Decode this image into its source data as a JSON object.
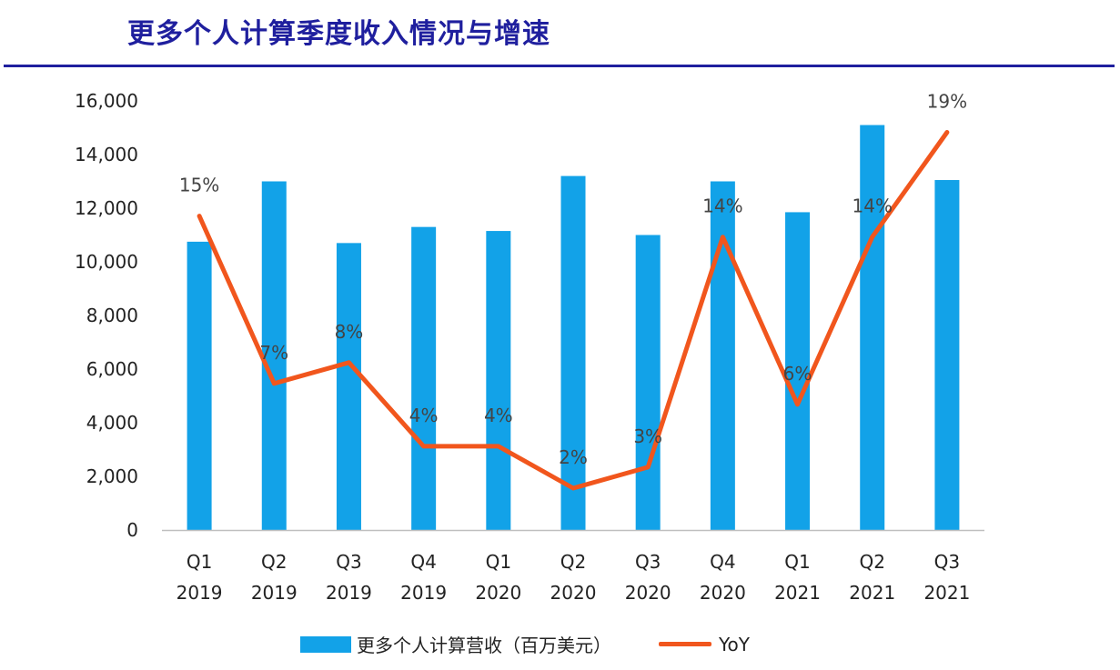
{
  "header": {
    "title": "更多个人计算季度收入情况与增速"
  },
  "colors": {
    "bar": "#12a2e8",
    "line": "#f1561d",
    "rule": "#1f1f9e",
    "title": "#1f1f9e"
  },
  "chart_data": {
    "type": "bar",
    "categories": [
      [
        "Q1",
        "2019"
      ],
      [
        "Q2",
        "2019"
      ],
      [
        "Q3",
        "2019"
      ],
      [
        "Q4",
        "2019"
      ],
      [
        "Q1",
        "2020"
      ],
      [
        "Q2",
        "2020"
      ],
      [
        "Q3",
        "2020"
      ],
      [
        "Q4",
        "2020"
      ],
      [
        "Q1",
        "2021"
      ],
      [
        "Q2",
        "2021"
      ],
      [
        "Q3",
        "2021"
      ]
    ],
    "series": [
      {
        "name": "更多个人计算营收（百万美元）",
        "type": "bar",
        "values": [
          10750,
          13000,
          10700,
          11300,
          11150,
          13200,
          11000,
          13000,
          11850,
          15100,
          13050
        ]
      },
      {
        "name": "YoY",
        "type": "line",
        "values": [
          15,
          7,
          8,
          4,
          4,
          2,
          3,
          14,
          6,
          14,
          19
        ],
        "labels": [
          "15%",
          "7%",
          "8%",
          "4%",
          "4%",
          "2%",
          "3%",
          "14%",
          "6%",
          "14%",
          "19%"
        ]
      }
    ],
    "y_ticks": [
      "0",
      "2,000",
      "4,000",
      "6,000",
      "8,000",
      "10,000",
      "12,000",
      "14,000",
      "16,000"
    ],
    "ylim": [
      0,
      16000
    ],
    "y2lim": [
      0,
      20.5
    ],
    "legend_position": "bottom",
    "grid": false
  }
}
